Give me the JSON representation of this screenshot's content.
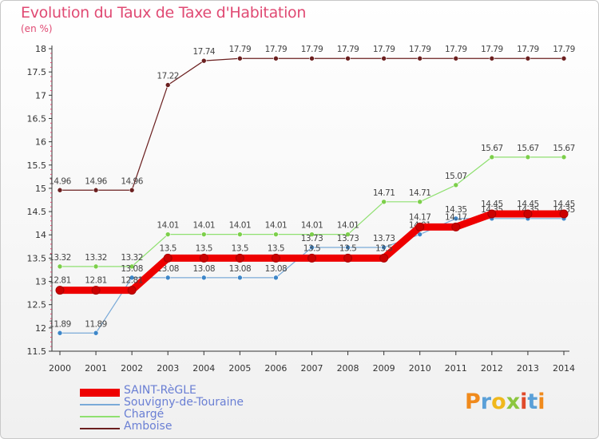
{
  "title": "Evolution du Taux de Taxe d'Habitation",
  "subtitle": "(en %)",
  "brand": {
    "text": "Proxiti",
    "letters": [
      {
        "ch": "P",
        "color": "#f08a1c"
      },
      {
        "ch": "r",
        "color": "#5aa0d8"
      },
      {
        "ch": "o",
        "color": "#f0b81c"
      },
      {
        "ch": "x",
        "color": "#8cc63f"
      },
      {
        "ch": "i",
        "color": "#e04a2a"
      },
      {
        "ch": "t",
        "color": "#5aa0d8"
      },
      {
        "ch": "i",
        "color": "#f08a1c"
      }
    ]
  },
  "chart_data": {
    "type": "line",
    "x": [
      "2000",
      "2001",
      "2002",
      "2003",
      "2004",
      "2005",
      "2006",
      "2007",
      "2008",
      "2009",
      "2010",
      "2011",
      "2012",
      "2013",
      "2014"
    ],
    "ylim": [
      11.5,
      18
    ],
    "yticks": [
      "11.5",
      "12",
      "12.5",
      "13",
      "13.5",
      "14",
      "14.5",
      "15",
      "15.5",
      "16",
      "16.5",
      "17",
      "17.5",
      "18"
    ],
    "xlabel": "",
    "ylabel": "",
    "grid": false,
    "legend": "bottom-left",
    "series": [
      {
        "name": "Amboise",
        "color": "#6b1f1f",
        "marker": "#6b1f1f",
        "width": 1.2,
        "values": [
          14.96,
          14.96,
          14.96,
          17.22,
          17.74,
          17.79,
          17.79,
          17.79,
          17.79,
          17.79,
          17.79,
          17.79,
          17.79,
          17.79,
          17.79
        ],
        "labels": [
          "14.96",
          "14.96",
          "14.96",
          "17.22",
          "17.74",
          "17.79",
          "17.79",
          "17.79",
          "17.79",
          "17.79",
          "17.79",
          "17.79",
          "17.79",
          "17.79",
          "17.79"
        ]
      },
      {
        "name": "Chargé",
        "color": "#8fe070",
        "marker": "#7ccf4a",
        "width": 1.2,
        "values": [
          13.32,
          13.32,
          13.32,
          14.01,
          14.01,
          14.01,
          14.01,
          14.01,
          14.01,
          14.71,
          14.71,
          15.07,
          15.67,
          15.67,
          15.67
        ],
        "labels": [
          "13.32",
          "13.32",
          "13.32",
          "14.01",
          "14.01",
          "14.01",
          "14.01",
          "14.01",
          "14.01",
          "14.71",
          "14.71",
          "15.07",
          "15.67",
          "15.67",
          "15.67"
        ]
      },
      {
        "name": "Souvigny-de-Touraine",
        "color": "#7aaad8",
        "marker": "#3d86c8",
        "width": 1.2,
        "values": [
          11.89,
          11.89,
          13.08,
          13.08,
          13.08,
          13.08,
          13.08,
          13.73,
          13.73,
          13.73,
          14.01,
          14.35,
          14.35,
          14.35,
          14.35
        ],
        "labels": [
          "11.89",
          "11.89",
          "13.08",
          "13.08",
          "13.08",
          "13.08",
          "13.08",
          "13.73",
          "13.73",
          "13.73",
          "14.01",
          "14.35",
          "14.35",
          "14.35",
          "14.35"
        ]
      },
      {
        "name": "SAINT-RèGLE",
        "color": "#ee0000",
        "marker": "#cc0000",
        "width": 9,
        "values": [
          12.81,
          12.81,
          12.81,
          13.5,
          13.5,
          13.5,
          13.5,
          13.5,
          13.5,
          13.5,
          14.17,
          14.17,
          14.45,
          14.45,
          14.45
        ],
        "labels": [
          "12.81",
          "12.81",
          "12.81",
          "13.5",
          "13.5",
          "13.5",
          "13.5",
          "13.5",
          "13.5",
          "13.5",
          "14.17",
          "14.17",
          "14.45",
          "14.45",
          "14.45"
        ]
      }
    ],
    "legend_order": [
      "SAINT-RèGLE",
      "Souvigny-de-Touraine",
      "Chargé",
      "Amboise"
    ]
  }
}
